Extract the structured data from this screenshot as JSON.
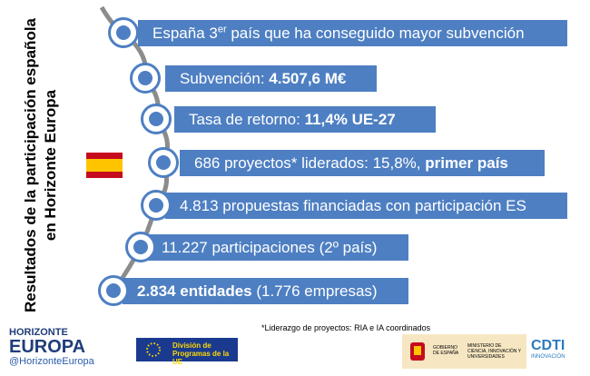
{
  "title": "Resultados de la participación española en Horizonte Europa",
  "items": [
    {
      "parts": [
        {
          "text": "España 3"
        },
        {
          "text": "er",
          "sup": true
        },
        {
          "text": " país que ha conseguido mayor subvención"
        }
      ]
    },
    {
      "parts": [
        {
          "text": "Subvención: "
        },
        {
          "text": "4.507,6 M€",
          "bold": true
        }
      ]
    },
    {
      "parts": [
        {
          "text": "Tasa de retorno: "
        },
        {
          "text": "11,4% UE-27",
          "bold": true
        }
      ]
    },
    {
      "parts": [
        {
          "text": "686 proyectos* liderados: 15,8%, "
        },
        {
          "text": "primer país",
          "bold": true
        }
      ]
    },
    {
      "parts": [
        {
          "text": "4.813 propuestas financiadas con participación ES"
        }
      ]
    },
    {
      "parts": [
        {
          "text": "11.227 participaciones (2º país)"
        }
      ]
    },
    {
      "parts": [
        {
          "text": "2.834 entidades",
          "bold": true
        },
        {
          "text": " (1.776 empresas)"
        }
      ]
    }
  ],
  "footnote": "*Liderazgo de proyectos: RIA e IA coordinados",
  "logos": {
    "horizonte": {
      "line1": "HORIZONTE",
      "line2": "EUROPA",
      "handle": "@HorizonteEuropa"
    },
    "eu": {
      "line1": "División de",
      "line2": "Programas de la UE"
    },
    "gobierno": {
      "left": "GOBIERNO DE ESPAÑA",
      "right": "MINISTERIO DE CIENCIA, INNOVACIÓN Y UNIVERSIDADES"
    },
    "cdti": {
      "name": "CDTI",
      "sub": "INNOVACIÓN"
    }
  }
}
